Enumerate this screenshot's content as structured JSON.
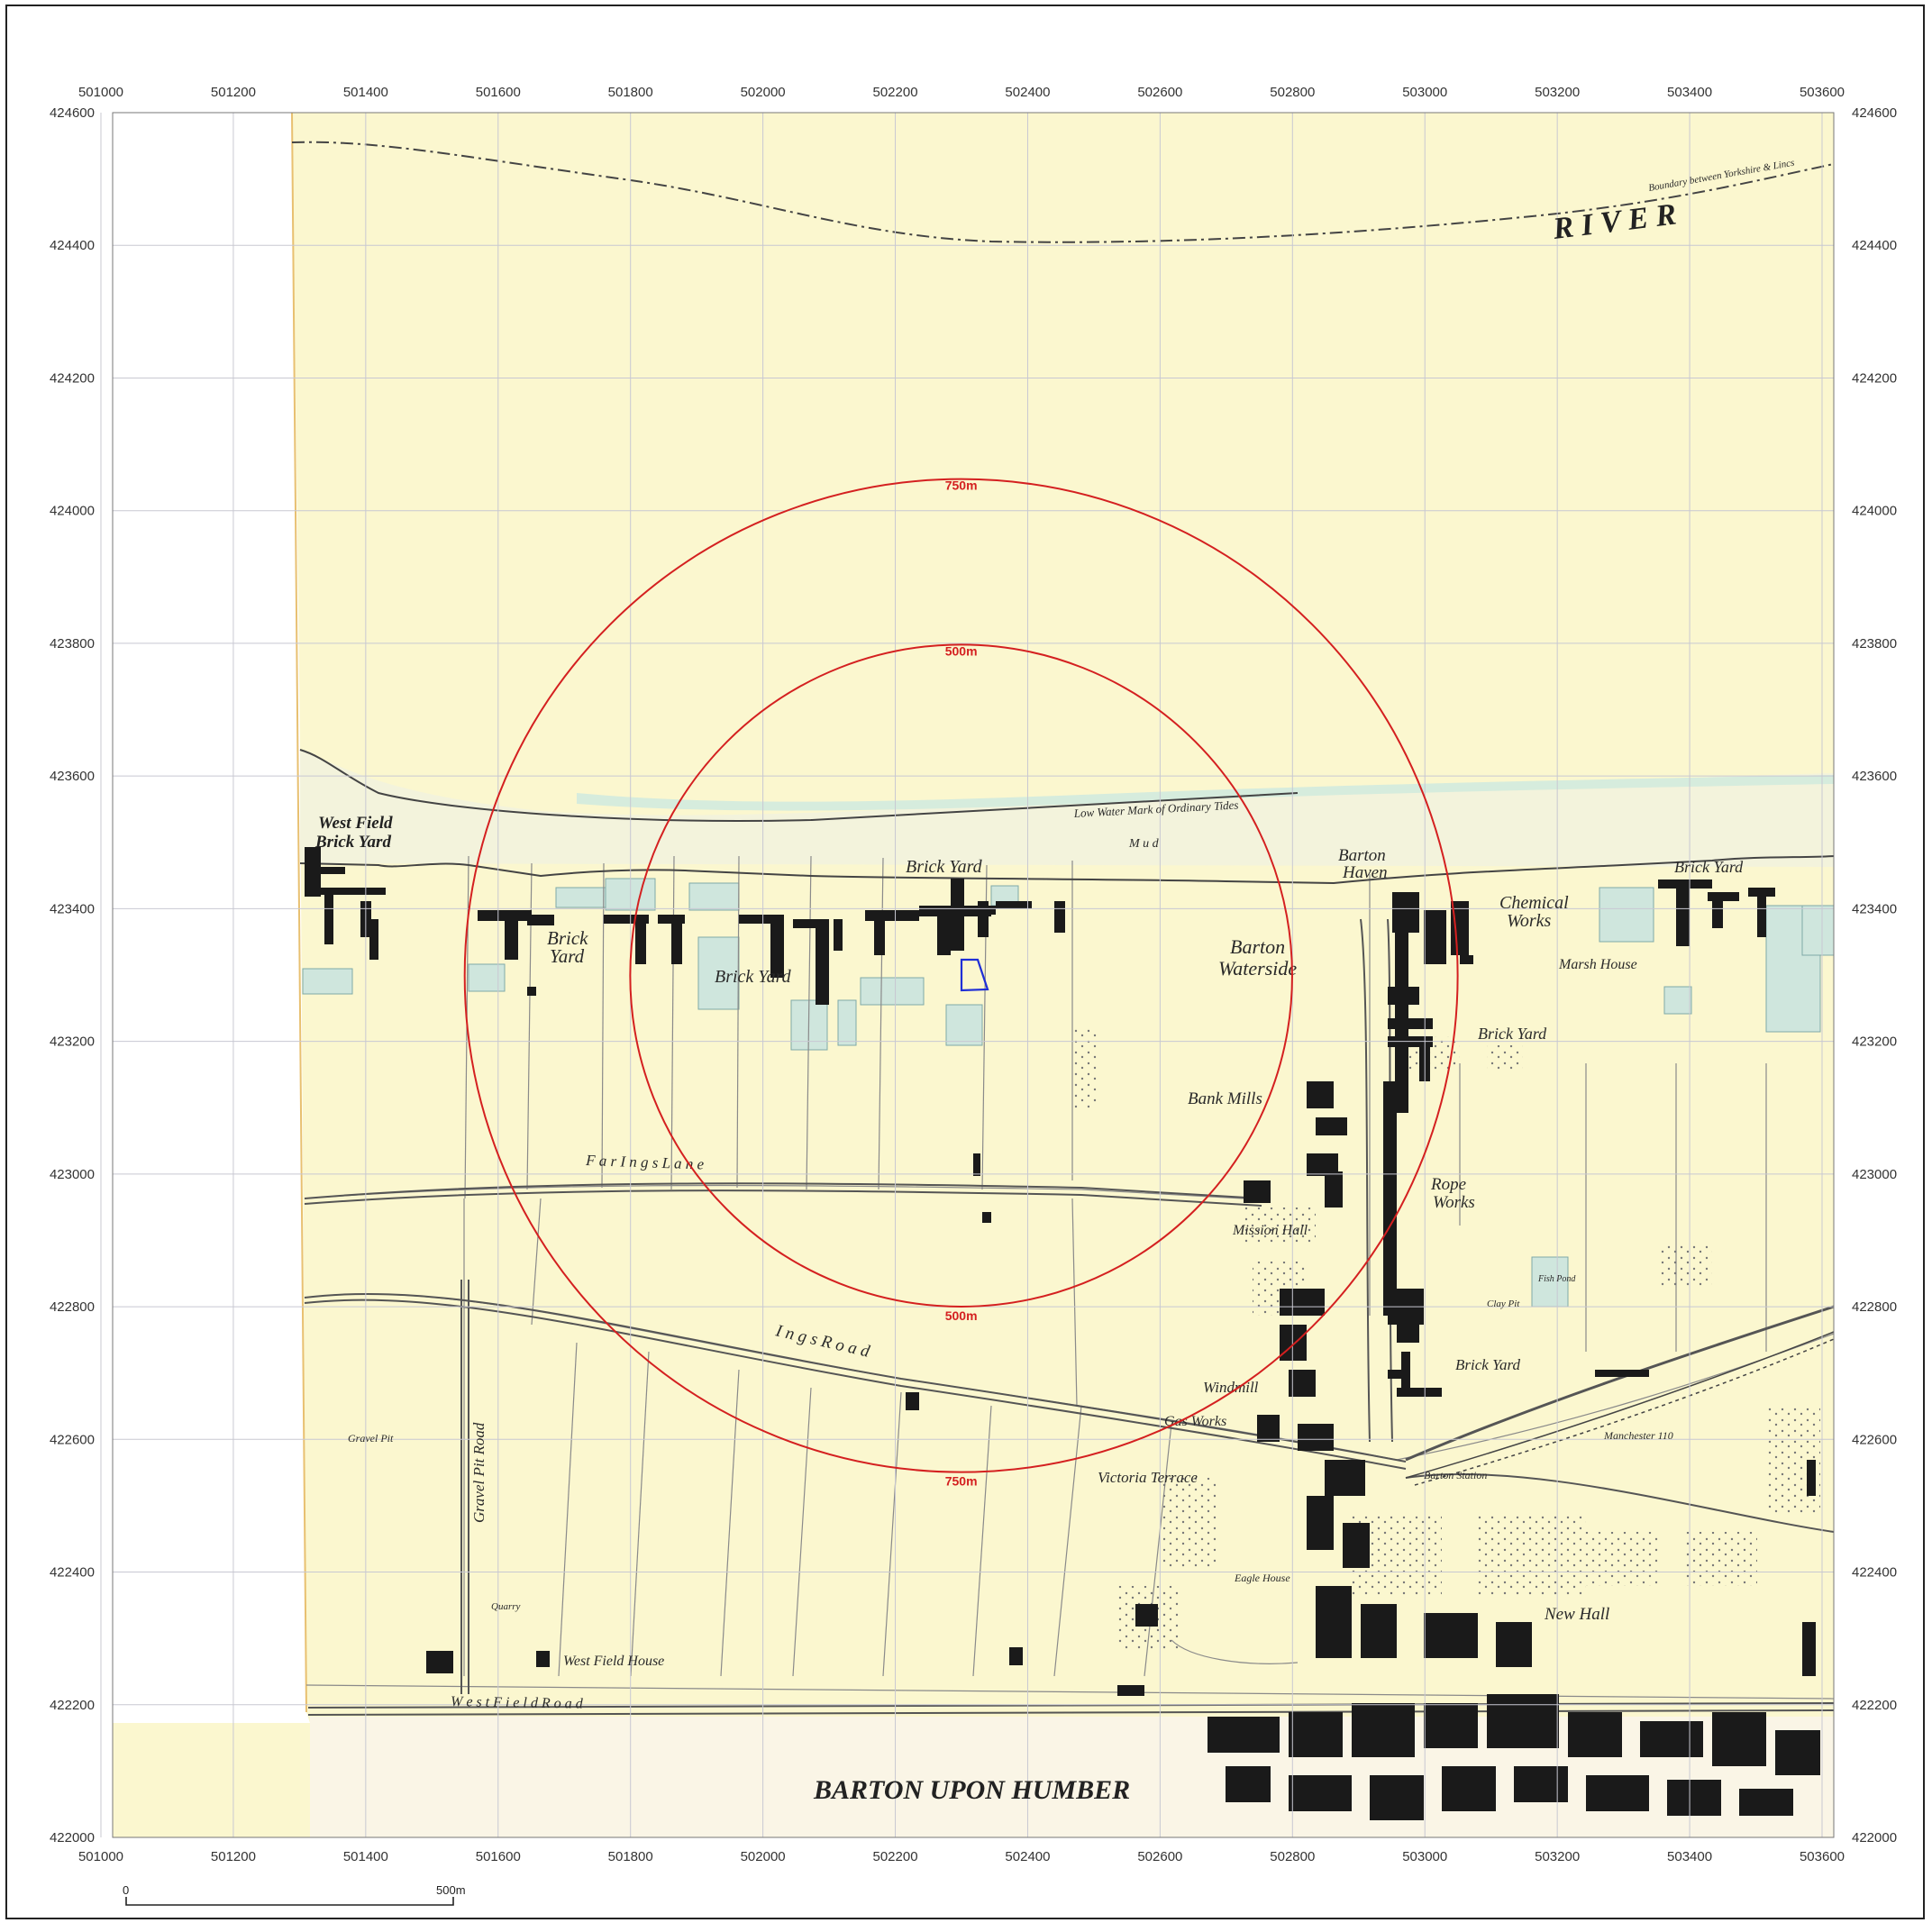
{
  "map": {
    "x_ticks": [
      "501000",
      "501200",
      "501400",
      "501600",
      "501800",
      "502000",
      "502200",
      "502400",
      "502600",
      "502800",
      "503000",
      "503200",
      "503400",
      "503600"
    ],
    "y_ticks": [
      "424600",
      "424400",
      "424200",
      "424000",
      "423800",
      "423600",
      "423400",
      "423200",
      "423000",
      "422800",
      "422600",
      "422400",
      "422200",
      "422000"
    ],
    "x_range": [
      501000,
      503600
    ],
    "y_range": [
      422000,
      424600
    ],
    "site_center": [
      502290,
      423310
    ],
    "buffers": [
      {
        "radius_m": 500,
        "label": "500m"
      },
      {
        "radius_m": 750,
        "label": "750m"
      }
    ],
    "colors": {
      "paper": "#fbf7cf",
      "buffer": "#d42020",
      "site_outline": "#1f2fd6",
      "water": "#cfe6dd",
      "building": "#1a1a1a",
      "grid": "#c8c8d2"
    },
    "scale_bar": {
      "start": "0",
      "end": "500m"
    },
    "place_labels": [
      {
        "id": "river",
        "text": "R  I  V  E  R"
      },
      {
        "id": "boundary",
        "text": "Boundary between Yorkshire & Lincs"
      },
      {
        "id": "low-water",
        "text": "Low Water Mark of Ordinary Tides"
      },
      {
        "id": "mud",
        "text": "M u d"
      },
      {
        "id": "west-field-brick-yard",
        "text": "West Field"
      },
      {
        "id": "west-field-brick-yard-2",
        "text": "Brick Yard"
      },
      {
        "id": "brick-yard-1",
        "text": "Brick"
      },
      {
        "id": "brick-yard-1b",
        "text": "Yard"
      },
      {
        "id": "brick-yard-2",
        "text": "Brick Yard"
      },
      {
        "id": "brick-yard-3",
        "text": "Brick Yard"
      },
      {
        "id": "barton-haven",
        "text": "Barton"
      },
      {
        "id": "barton-haven-2",
        "text": "Haven"
      },
      {
        "id": "barton-waterside",
        "text": "Barton"
      },
      {
        "id": "barton-waterside-2",
        "text": "Waterside"
      },
      {
        "id": "chemical-works",
        "text": "Chemical"
      },
      {
        "id": "chemical-works-2",
        "text": "Works"
      },
      {
        "id": "brick-yard-ne",
        "text": "Brick Yard"
      },
      {
        "id": "marsh-house",
        "text": "Marsh House"
      },
      {
        "id": "brick-yard-e",
        "text": "Brick Yard"
      },
      {
        "id": "bank-mills",
        "text": "Bank Mills"
      },
      {
        "id": "rope-works",
        "text": "Rope"
      },
      {
        "id": "rope-works-2",
        "text": "Works"
      },
      {
        "id": "mission-hall",
        "text": "Mission Hall"
      },
      {
        "id": "farings-lane",
        "text": "F a r    I n g s    L a n e"
      },
      {
        "id": "ings-road",
        "text": "I  n  g  s      R  o  a  d"
      },
      {
        "id": "windmill",
        "text": "Windmill"
      },
      {
        "id": "gas-works",
        "text": "Gas Works"
      },
      {
        "id": "brick-yard-se",
        "text": "Brick Yard"
      },
      {
        "id": "victoria-terrace",
        "text": "Victoria Terrace"
      },
      {
        "id": "barton-station",
        "text": "Barton Station"
      },
      {
        "id": "manchester",
        "text": "Manchester 110"
      },
      {
        "id": "gravel-pit-road",
        "text": "Gravel Pit Road"
      },
      {
        "id": "gravel-pit",
        "text": "Gravel Pit"
      },
      {
        "id": "quarry",
        "text": "Quarry"
      },
      {
        "id": "west-field-house",
        "text": "West Field House"
      },
      {
        "id": "west-field-road",
        "text": "W e s t    F i e l d    R o a d"
      },
      {
        "id": "new-hall",
        "text": "New Hall"
      },
      {
        "id": "eagle-house",
        "text": "Eagle House"
      },
      {
        "id": "town-name",
        "text": "BARTON UPON HUMBER"
      },
      {
        "id": "clay-pit",
        "text": "Clay Pit"
      },
      {
        "id": "fish-pond",
        "text": "Fish Pond"
      }
    ]
  }
}
